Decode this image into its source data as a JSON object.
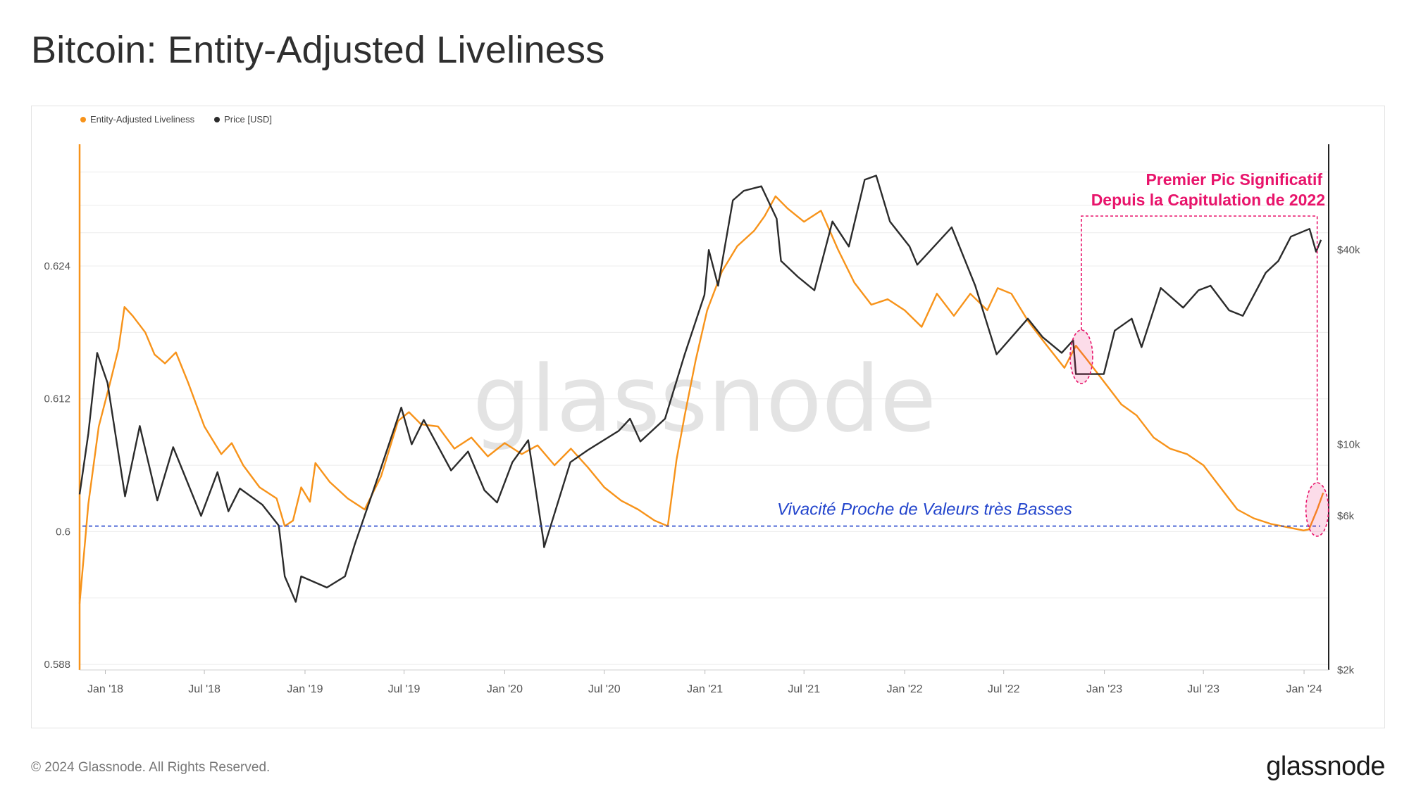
{
  "page": {
    "title": "Bitcoin: Entity-Adjusted Liveliness",
    "copyright": "© 2024 Glassnode. All Rights Reserved.",
    "logo": "glassnode",
    "watermark": "glassnode"
  },
  "colors": {
    "liveliness": "#f7931a",
    "price": "#2b2b2b",
    "highlight": "#e8146b",
    "baseline": "#2244cc",
    "grid": "#ececec"
  },
  "chart_data": {
    "type": "line",
    "legend": [
      {
        "name": "Entity-Adjusted Liveliness",
        "color": "#f7931a"
      },
      {
        "name": "Price [USD]",
        "color": "#2b2b2b"
      }
    ],
    "x_ticks": [
      "Jan '18",
      "Jul '18",
      "Jan '19",
      "Jul '19",
      "Jan '20",
      "Jul '20",
      "Jan '21",
      "Jul '21",
      "Jan '22",
      "Jul '22",
      "Jan '23",
      "Jul '23",
      "Jan '24"
    ],
    "y_left_ticks": [
      "0.624",
      "0.612",
      "0.6",
      "0.588"
    ],
    "y_left_tick_values": [
      0.624,
      0.612,
      0.6,
      0.588
    ],
    "y_left_range": [
      0.5875,
      0.635
    ],
    "y_right_ticks": [
      "$40k",
      "$10k",
      "$6k",
      "$2k"
    ],
    "y_right_tick_values": [
      40000,
      10000,
      6000,
      2000
    ],
    "y_right_scale": "log",
    "y_right_range": [
      2000,
      85000
    ],
    "x_range": [
      "2017-11-15",
      "2024-02-15"
    ],
    "series": [
      {
        "name": "Entity-Adjusted Liveliness",
        "axis": "left",
        "points": [
          [
            "2017-11-15",
            0.5935
          ],
          [
            "2017-12-01",
            0.6025
          ],
          [
            "2017-12-20",
            0.6095
          ],
          [
            "2018-01-10",
            0.6135
          ],
          [
            "2018-01-25",
            0.6165
          ],
          [
            "2018-02-05",
            0.6203
          ],
          [
            "2018-02-20",
            0.6195
          ],
          [
            "2018-03-15",
            0.618
          ],
          [
            "2018-04-01",
            0.616
          ],
          [
            "2018-04-20",
            0.6152
          ],
          [
            "2018-05-10",
            0.6162
          ],
          [
            "2018-06-01",
            0.6135
          ],
          [
            "2018-07-01",
            0.6095
          ],
          [
            "2018-08-01",
            0.607
          ],
          [
            "2018-08-20",
            0.608
          ],
          [
            "2018-09-10",
            0.606
          ],
          [
            "2018-10-10",
            0.604
          ],
          [
            "2018-11-10",
            0.603
          ],
          [
            "2018-11-25",
            0.6005
          ],
          [
            "2018-12-10",
            0.601
          ],
          [
            "2018-12-25",
            0.604
          ],
          [
            "2019-01-10",
            0.6027
          ],
          [
            "2019-01-20",
            0.6062
          ],
          [
            "2019-02-15",
            0.6045
          ],
          [
            "2019-03-20",
            0.603
          ],
          [
            "2019-04-20",
            0.602
          ],
          [
            "2019-05-20",
            0.605
          ],
          [
            "2019-06-20",
            0.61
          ],
          [
            "2019-07-10",
            0.6108
          ],
          [
            "2019-08-01",
            0.6097
          ],
          [
            "2019-09-01",
            0.6095
          ],
          [
            "2019-10-01",
            0.6075
          ],
          [
            "2019-11-01",
            0.6085
          ],
          [
            "2019-12-01",
            0.6068
          ],
          [
            "2020-01-01",
            0.608
          ],
          [
            "2020-02-01",
            0.607
          ],
          [
            "2020-03-01",
            0.6078
          ],
          [
            "2020-04-01",
            0.606
          ],
          [
            "2020-05-01",
            0.6075
          ],
          [
            "2020-06-01",
            0.6058
          ],
          [
            "2020-07-01",
            0.604
          ],
          [
            "2020-08-01",
            0.6028
          ],
          [
            "2020-09-01",
            0.602
          ],
          [
            "2020-10-01",
            0.601
          ],
          [
            "2020-10-25",
            0.6005
          ],
          [
            "2020-11-10",
            0.6065
          ],
          [
            "2020-11-25",
            0.6105
          ],
          [
            "2020-12-15",
            0.6155
          ],
          [
            "2021-01-05",
            0.62
          ],
          [
            "2021-02-01",
            0.6235
          ],
          [
            "2021-03-01",
            0.6258
          ],
          [
            "2021-04-01",
            0.6272
          ],
          [
            "2021-04-20",
            0.6285
          ],
          [
            "2021-05-10",
            0.6303
          ],
          [
            "2021-06-01",
            0.6292
          ],
          [
            "2021-07-01",
            0.628
          ],
          [
            "2021-08-01",
            0.629
          ],
          [
            "2021-09-01",
            0.6255
          ],
          [
            "2021-10-01",
            0.6225
          ],
          [
            "2021-11-01",
            0.6205
          ],
          [
            "2021-12-01",
            0.621
          ],
          [
            "2022-01-01",
            0.62
          ],
          [
            "2022-02-01",
            0.6185
          ],
          [
            "2022-03-01",
            0.6215
          ],
          [
            "2022-04-01",
            0.6195
          ],
          [
            "2022-05-01",
            0.6215
          ],
          [
            "2022-06-01",
            0.62
          ],
          [
            "2022-06-20",
            0.622
          ],
          [
            "2022-07-15",
            0.6215
          ],
          [
            "2022-08-15",
            0.619
          ],
          [
            "2022-09-15",
            0.617
          ],
          [
            "2022-10-20",
            0.6148
          ],
          [
            "2022-11-10",
            0.6168
          ],
          [
            "2022-12-01",
            0.6155
          ],
          [
            "2023-01-01",
            0.6135
          ],
          [
            "2023-02-01",
            0.6115
          ],
          [
            "2023-03-01",
            0.6105
          ],
          [
            "2023-04-01",
            0.6085
          ],
          [
            "2023-05-01",
            0.6075
          ],
          [
            "2023-06-01",
            0.607
          ],
          [
            "2023-07-01",
            0.606
          ],
          [
            "2023-08-01",
            0.604
          ],
          [
            "2023-09-01",
            0.602
          ],
          [
            "2023-10-01",
            0.6012
          ],
          [
            "2023-11-01",
            0.6007
          ],
          [
            "2023-12-01",
            0.6004
          ],
          [
            "2023-12-31",
            0.6001
          ],
          [
            "2024-01-10",
            0.6002
          ],
          [
            "2024-01-25",
            0.602
          ],
          [
            "2024-02-05",
            0.6035
          ]
        ]
      },
      {
        "name": "Price [USD]",
        "axis": "right",
        "points": [
          [
            "2017-11-15",
            7000
          ],
          [
            "2017-12-01",
            10800
          ],
          [
            "2017-12-17",
            19200
          ],
          [
            "2018-01-05",
            15500
          ],
          [
            "2018-02-06",
            6900
          ],
          [
            "2018-03-05",
            11400
          ],
          [
            "2018-04-06",
            6700
          ],
          [
            "2018-05-05",
            9800
          ],
          [
            "2018-06-25",
            6000
          ],
          [
            "2018-07-25",
            8200
          ],
          [
            "2018-08-14",
            6200
          ],
          [
            "2018-09-04",
            7300
          ],
          [
            "2018-10-15",
            6500
          ],
          [
            "2018-11-14",
            5600
          ],
          [
            "2018-11-25",
            3900
          ],
          [
            "2018-12-15",
            3250
          ],
          [
            "2018-12-25",
            3900
          ],
          [
            "2019-02-10",
            3600
          ],
          [
            "2019-03-15",
            3900
          ],
          [
            "2019-04-02",
            4900
          ],
          [
            "2019-05-14",
            7900
          ],
          [
            "2019-06-26",
            13000
          ],
          [
            "2019-07-15",
            10000
          ],
          [
            "2019-08-06",
            11900
          ],
          [
            "2019-09-25",
            8300
          ],
          [
            "2019-10-26",
            9500
          ],
          [
            "2019-11-25",
            7200
          ],
          [
            "2019-12-18",
            6600
          ],
          [
            "2020-01-15",
            8800
          ],
          [
            "2020-02-13",
            10300
          ],
          [
            "2020-03-12",
            5000
          ],
          [
            "2020-03-13",
            4800
          ],
          [
            "2020-04-30",
            8800
          ],
          [
            "2020-06-01",
            9600
          ],
          [
            "2020-07-27",
            11000
          ],
          [
            "2020-08-17",
            12000
          ],
          [
            "2020-09-05",
            10200
          ],
          [
            "2020-10-20",
            12000
          ],
          [
            "2020-11-25",
            19000
          ],
          [
            "2020-12-31",
            29000
          ],
          [
            "2021-01-08",
            40000
          ],
          [
            "2021-01-25",
            31000
          ],
          [
            "2021-02-21",
            57000
          ],
          [
            "2021-03-13",
            61000
          ],
          [
            "2021-04-14",
            63000
          ],
          [
            "2021-05-12",
            50000
          ],
          [
            "2021-05-20",
            37000
          ],
          [
            "2021-06-20",
            33000
          ],
          [
            "2021-07-20",
            30000
          ],
          [
            "2021-08-22",
            49000
          ],
          [
            "2021-09-21",
            41000
          ],
          [
            "2021-10-20",
            66000
          ],
          [
            "2021-11-10",
            68000
          ],
          [
            "2021-12-05",
            49000
          ],
          [
            "2022-01-10",
            41000
          ],
          [
            "2022-01-24",
            36000
          ],
          [
            "2022-03-28",
            47000
          ],
          [
            "2022-05-10",
            31000
          ],
          [
            "2022-06-18",
            19000
          ],
          [
            "2022-08-14",
            24500
          ],
          [
            "2022-09-10",
            21500
          ],
          [
            "2022-10-15",
            19200
          ],
          [
            "2022-11-05",
            21000
          ],
          [
            "2022-11-10",
            16500
          ],
          [
            "2022-12-31",
            16500
          ],
          [
            "2023-01-20",
            22500
          ],
          [
            "2023-02-20",
            24500
          ],
          [
            "2023-03-10",
            20000
          ],
          [
            "2023-04-14",
            30500
          ],
          [
            "2023-05-25",
            26500
          ],
          [
            "2023-06-22",
            30000
          ],
          [
            "2023-07-14",
            31000
          ],
          [
            "2023-08-17",
            26000
          ],
          [
            "2023-09-11",
            25000
          ],
          [
            "2023-10-23",
            34000
          ],
          [
            "2023-11-15",
            37000
          ],
          [
            "2023-12-08",
            44000
          ],
          [
            "2024-01-11",
            46500
          ],
          [
            "2024-01-23",
            39500
          ],
          [
            "2024-02-01",
            43000
          ]
        ]
      }
    ],
    "annotations": [
      {
        "text_line1": "Premier Pic Significatif",
        "text_line2": "Depuis la Capitulation de 2022",
        "color": "#e8146b"
      },
      {
        "text": "Vivacité Proche de Valeurs très Basses",
        "color": "#2244cc",
        "y_value": 0.6005
      }
    ]
  }
}
